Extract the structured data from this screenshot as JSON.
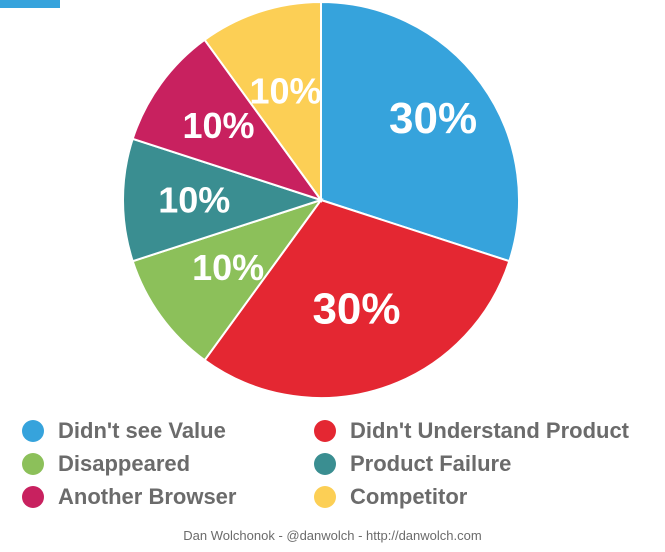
{
  "chart_data": {
    "type": "pie",
    "title": "",
    "slices": [
      {
        "label": "Didn't see Value",
        "value": 30,
        "display": "30%",
        "color": "#36a3dc"
      },
      {
        "label": "Didn't Understand Product",
        "value": 30,
        "display": "30%",
        "color": "#e42732"
      },
      {
        "label": "Disappeared",
        "value": 10,
        "display": "10%",
        "color": "#8cc05a"
      },
      {
        "label": "Product Failure",
        "value": 10,
        "display": "10%",
        "color": "#3a8e91"
      },
      {
        "label": "Another Browser",
        "value": 10,
        "display": "10%",
        "color": "#c8215f"
      },
      {
        "label": "Competitor",
        "value": 10,
        "display": "10%",
        "color": "#fccf55"
      }
    ],
    "legend_placement": "bottom"
  },
  "colors": {
    "background": "#ffffff",
    "text": "#6b6b6b",
    "top_sliver": "#36a3dc"
  },
  "footer": "Dan Wolchonok - @danwolch - http://danwolch.com"
}
